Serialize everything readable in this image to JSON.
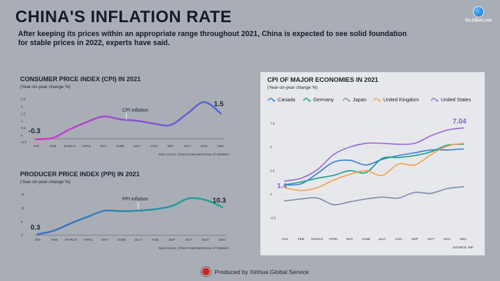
{
  "header": {
    "title": "CHINA'S INFLATION RATE",
    "subtitle": "After keeping its prices within an appropriate range throughout 2021, China is expected to see solid foundation for stable prices in 2022, experts have said.",
    "logo_text": "GLOBALink"
  },
  "footer": {
    "text": "Produced by Xinhua Global Service"
  },
  "chart_data": [
    {
      "type": "line",
      "title": "CONSUMER PRICE INDEX (CPI) IN 2021",
      "subtitle": "(Year-on-year change %)",
      "categories": [
        "JAN",
        "FEB",
        "MARCH",
        "APRIL",
        "MAY",
        "JUNE",
        "JULY",
        "AUG",
        "SEP",
        "OCT",
        "NOV",
        "DEC"
      ],
      "series": [
        {
          "name": "",
          "values": [
            -0.3,
            -0.2,
            0.4,
            0.9,
            1.3,
            1.1,
            1.0,
            0.8,
            0.7,
            1.5,
            2.3,
            1.5
          ],
          "colors": [
            "#d838c8",
            "#4c6ad6"
          ]
        }
      ],
      "ylim": [
        -0.5,
        2.5
      ],
      "yticks": [
        "2.5",
        "2",
        "1.5",
        "1",
        "0.5",
        "0",
        "-0.5"
      ],
      "annotation": "CPI inflation",
      "start_label": "-0.3",
      "end_label": "1.5",
      "source": "Data source: China's National Bureau of Statistics"
    },
    {
      "type": "line",
      "title": "PRODUCER PRICE INDEX (PPI) IN 2021",
      "subtitle": "(Year-on-year change %)",
      "categories": [
        "JAN",
        "FEB",
        "MARCH",
        "APRIL",
        "MAY",
        "JUNE",
        "JULY",
        "AUG",
        "SEP",
        "OCT",
        "NOV",
        "DEC"
      ],
      "series": [
        {
          "name": "",
          "values": [
            0.3,
            1.7,
            4.4,
            6.8,
            9.0,
            8.8,
            9.0,
            9.5,
            10.7,
            13.5,
            12.9,
            10.3
          ],
          "colors": [
            "#3e6bc8",
            "#1ea88e"
          ]
        }
      ],
      "ylim": [
        0,
        15
      ],
      "yticks": [
        "15",
        "10",
        "5",
        "0"
      ],
      "annotation": "PPI inflation",
      "start_label": "0.3",
      "end_label": "10.3",
      "source": "Data source: China's National Bureau of Statistics"
    },
    {
      "type": "line",
      "title": "CPI OF MAJOR ECONOMIES IN 2021",
      "subtitle": "(Year-on-year change %)",
      "categories": [
        "JAN",
        "FEB",
        "MARCH",
        "APRIL",
        "MAY",
        "JUNE",
        "JULY",
        "AUG",
        "SEP",
        "OCT",
        "NOV",
        "DEC"
      ],
      "ylim": [
        -2.5,
        7.5
      ],
      "yticks": [
        "7.5",
        "5",
        "2.5",
        "0",
        "-2.5"
      ],
      "series": [
        {
          "name": "Canada",
          "color": "#3d7fd6",
          "values": [
            1.0,
            1.1,
            2.2,
            3.4,
            3.6,
            3.1,
            3.7,
            4.1,
            4.4,
            4.7,
            4.7,
            4.8
          ]
        },
        {
          "name": "Germany",
          "color": "#1ba08a",
          "values": [
            1.0,
            1.3,
            1.7,
            2.0,
            2.5,
            2.3,
            3.8,
            3.9,
            4.1,
            4.5,
            5.2,
            5.3
          ]
        },
        {
          "name": "Japan",
          "color": "#7f90ad",
          "values": [
            -0.7,
            -0.5,
            -0.4,
            -1.1,
            -0.8,
            -0.5,
            -0.3,
            -0.4,
            0.2,
            0.1,
            0.6,
            0.8
          ]
        },
        {
          "name": "United Kingdom",
          "color": "#f5a04a",
          "values": [
            0.7,
            0.4,
            0.7,
            1.5,
            2.1,
            2.5,
            2.0,
            3.2,
            3.1,
            4.2,
            5.1,
            5.4
          ]
        },
        {
          "name": "United States",
          "color": "#9b6cd6",
          "values": [
            1.4,
            1.7,
            2.6,
            4.2,
            5.0,
            5.4,
            5.4,
            5.3,
            5.4,
            6.2,
            6.8,
            7.04
          ]
        }
      ],
      "start_label": "1.4",
      "end_label": "7.04",
      "source": "SOURCE: IMF"
    }
  ]
}
